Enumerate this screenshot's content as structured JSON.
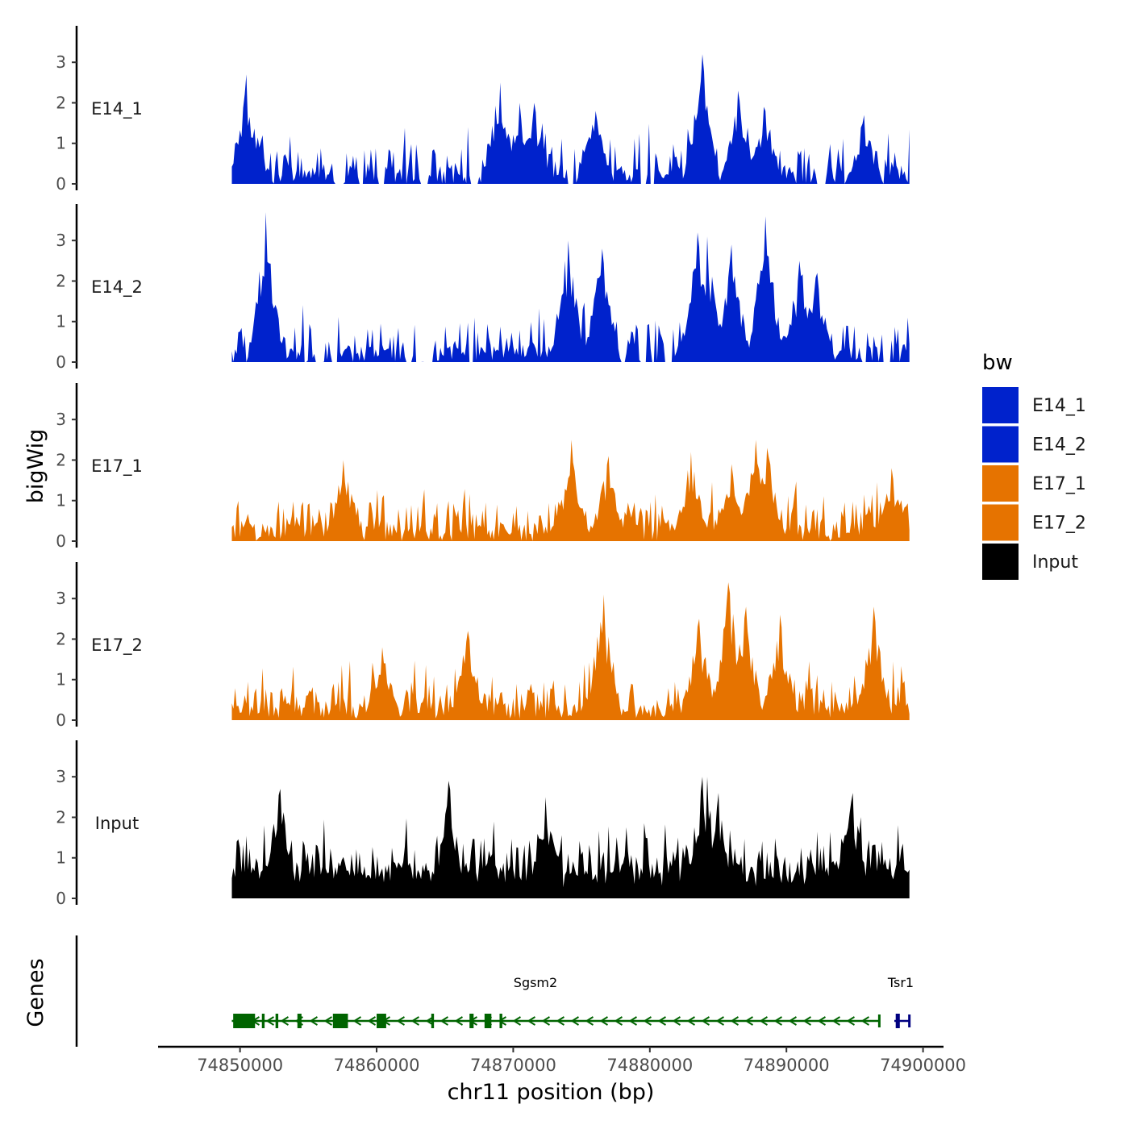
{
  "chart_data": {
    "type": "area",
    "title": "",
    "ylabel": "bigWig",
    "genes_ylabel": "Genes",
    "xlabel": "chr11 position (bp)",
    "xlim": [
      74844000,
      74901500
    ],
    "ylim": [
      0,
      3.9
    ],
    "yticks": [
      0,
      1,
      2,
      3
    ],
    "xticks": [
      74850000,
      74860000,
      74870000,
      74880000,
      74890000,
      74900000
    ],
    "x_tick_labels": [
      "74850000",
      "74860000",
      "74870000",
      "74880000",
      "74890000",
      "74900000"
    ],
    "region": [
      74849400,
      74899000
    ],
    "tracks": [
      {
        "name": "E14_1",
        "color": "#0022cc",
        "seed": 101,
        "peaks": [
          {
            "x": 74850500,
            "y": 2.7
          },
          {
            "x": 74869000,
            "y": 2.5
          },
          {
            "x": 74870500,
            "y": 2.0
          },
          {
            "x": 74871500,
            "y": 2.0
          },
          {
            "x": 74876000,
            "y": 1.8
          },
          {
            "x": 74883800,
            "y": 3.2
          },
          {
            "x": 74886500,
            "y": 2.3
          },
          {
            "x": 74888400,
            "y": 1.9
          },
          {
            "x": 74895700,
            "y": 1.7
          }
        ]
      },
      {
        "name": "E14_2",
        "color": "#0022cc",
        "seed": 202,
        "peaks": [
          {
            "x": 74851900,
            "y": 3.7
          },
          {
            "x": 74874000,
            "y": 3.0
          },
          {
            "x": 74876500,
            "y": 2.8
          },
          {
            "x": 74883500,
            "y": 3.2
          },
          {
            "x": 74884200,
            "y": 3.1
          },
          {
            "x": 74886000,
            "y": 2.9
          },
          {
            "x": 74888500,
            "y": 3.6
          },
          {
            "x": 74891000,
            "y": 2.5
          },
          {
            "x": 74892200,
            "y": 2.2
          }
        ]
      },
      {
        "name": "E17_1",
        "color": "#e67300",
        "seed": 303,
        "peaks": [
          {
            "x": 74857600,
            "y": 2.0
          },
          {
            "x": 74874300,
            "y": 2.5
          },
          {
            "x": 74877000,
            "y": 2.1
          },
          {
            "x": 74883000,
            "y": 2.2
          },
          {
            "x": 74886000,
            "y": 1.9
          },
          {
            "x": 74887700,
            "y": 2.5
          },
          {
            "x": 74888600,
            "y": 2.3
          },
          {
            "x": 74897700,
            "y": 1.8
          }
        ]
      },
      {
        "name": "E17_2",
        "color": "#e67300",
        "seed": 404,
        "peaks": [
          {
            "x": 74860400,
            "y": 1.8
          },
          {
            "x": 74866700,
            "y": 2.2
          },
          {
            "x": 74876600,
            "y": 3.1
          },
          {
            "x": 74883600,
            "y": 2.5
          },
          {
            "x": 74885800,
            "y": 3.4
          },
          {
            "x": 74887000,
            "y": 2.8
          },
          {
            "x": 74889500,
            "y": 2.6
          },
          {
            "x": 74896400,
            "y": 2.8
          }
        ]
      },
      {
        "name": "Input",
        "color": "#000000",
        "seed": 505,
        "peaks": [
          {
            "x": 74852900,
            "y": 2.7
          },
          {
            "x": 74865300,
            "y": 2.9
          },
          {
            "x": 74872400,
            "y": 2.5
          },
          {
            "x": 74883800,
            "y": 3.0
          },
          {
            "x": 74884200,
            "y": 3.0
          },
          {
            "x": 74885000,
            "y": 2.6
          },
          {
            "x": 74894800,
            "y": 2.6
          }
        ]
      }
    ],
    "legend": {
      "title": "bw",
      "position": "right",
      "entries": [
        {
          "label": "E14_1",
          "color": "#0022cc"
        },
        {
          "label": "E14_2",
          "color": "#0022cc"
        },
        {
          "label": "E17_1",
          "color": "#e67300"
        },
        {
          "label": "E17_2",
          "color": "#e67300"
        },
        {
          "label": "Input",
          "color": "#000000"
        }
      ]
    },
    "genes": [
      {
        "name": "Sgsm2",
        "strand": "-",
        "color": "#006400",
        "start": 74849400,
        "end": 74896800,
        "exons": [
          [
            74849500,
            74851100
          ],
          [
            74851600,
            74851800
          ],
          [
            74852600,
            74852800
          ],
          [
            74854200,
            74854500
          ],
          [
            74856800,
            74857900
          ],
          [
            74860000,
            74860700
          ],
          [
            74864000,
            74864200
          ],
          [
            74866800,
            74867100
          ],
          [
            74867900,
            74868400
          ],
          [
            74869000,
            74869200
          ]
        ]
      },
      {
        "name": "Tsr1",
        "strand": "+",
        "color": "#000080",
        "start": 74897900,
        "end": 74899000,
        "exons": [
          [
            74898000,
            74898300
          ]
        ]
      }
    ]
  }
}
